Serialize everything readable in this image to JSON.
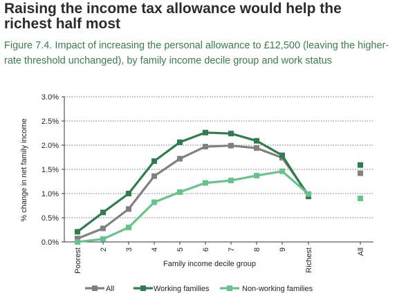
{
  "headline": "Raising the income tax allowance would help the richest half most",
  "caption": "Figure 7.4. Impact of increasing the personal allowance to £12,500 (leaving the higher-rate threshold unchanged), by family income decile group and work status",
  "chart_data": {
    "type": "line",
    "title": "",
    "xlabel": "Family income decile group",
    "ylabel": "% change in net family income",
    "categories": [
      "Poorest",
      "2",
      "3",
      "4",
      "5",
      "6",
      "7",
      "8",
      "9",
      "Richest"
    ],
    "summary_category": "All",
    "y_ticks": [
      "0.0%",
      "0.5%",
      "1.0%",
      "1.5%",
      "2.0%",
      "2.5%",
      "3.0%"
    ],
    "ylim": [
      0,
      3.0
    ],
    "grid": "horizontal-dotted",
    "legend_position": "bottom",
    "series": [
      {
        "name": "All",
        "color": "#808080",
        "values": [
          0.07,
          0.28,
          0.68,
          1.36,
          1.72,
          1.97,
          1.99,
          1.94,
          1.74,
          0.97
        ],
        "all": 1.42
      },
      {
        "name": "Working families",
        "color": "#2e7d4f",
        "values": [
          0.21,
          0.61,
          1.0,
          1.67,
          2.06,
          2.26,
          2.24,
          2.09,
          1.79,
          0.94
        ],
        "all": 1.59
      },
      {
        "name": "Non-working families",
        "color": "#66c48a",
        "values": [
          0.0,
          0.06,
          0.3,
          0.82,
          1.03,
          1.22,
          1.27,
          1.37,
          1.46,
          0.99
        ],
        "all": 0.9
      }
    ]
  }
}
